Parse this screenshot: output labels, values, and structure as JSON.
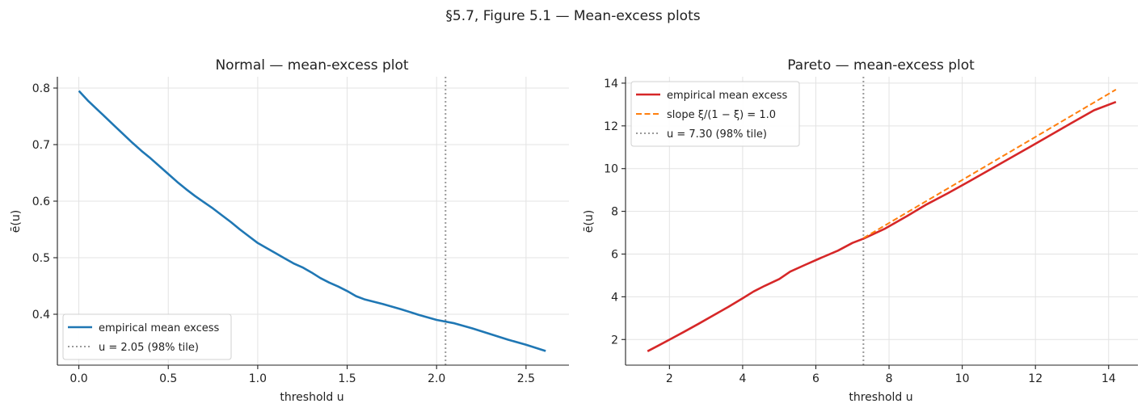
{
  "suptitle": "§5.7, Figure 5.1 — Mean-excess plots",
  "chart_data": [
    {
      "type": "line",
      "title": "Normal — mean-excess plot",
      "xlabel": "threshold u",
      "ylabel": "ē(u)",
      "xlim": [
        -0.12,
        2.74
      ],
      "ylim": [
        0.31,
        0.82
      ],
      "xticks": [
        0.0,
        0.5,
        1.0,
        1.5,
        2.0,
        2.5
      ],
      "xtick_labels": [
        "0.0",
        "0.5",
        "1.0",
        "1.5",
        "2.0",
        "2.5"
      ],
      "yticks": [
        0.4,
        0.5,
        0.6,
        0.7,
        0.8
      ],
      "ytick_labels": [
        "0.4",
        "0.5",
        "0.6",
        "0.7",
        "0.8"
      ],
      "grid": true,
      "legend_position": "lower-left",
      "series": [
        {
          "name": "empirical mean excess",
          "color": "#1f77b4",
          "style": "solid",
          "x": [
            0.0,
            0.05,
            0.1,
            0.15,
            0.2,
            0.25,
            0.3,
            0.35,
            0.4,
            0.45,
            0.5,
            0.55,
            0.6,
            0.65,
            0.7,
            0.75,
            0.8,
            0.85,
            0.9,
            0.95,
            1.0,
            1.05,
            1.1,
            1.15,
            1.2,
            1.25,
            1.3,
            1.35,
            1.4,
            1.45,
            1.5,
            1.55,
            1.6,
            1.7,
            1.8,
            1.9,
            2.0,
            2.1,
            2.2,
            2.3,
            2.4,
            2.5,
            2.61
          ],
          "y": [
            0.795,
            0.778,
            0.763,
            0.748,
            0.733,
            0.718,
            0.703,
            0.689,
            0.676,
            0.662,
            0.648,
            0.634,
            0.621,
            0.609,
            0.598,
            0.587,
            0.575,
            0.563,
            0.55,
            0.538,
            0.526,
            0.517,
            0.508,
            0.499,
            0.49,
            0.483,
            0.474,
            0.464,
            0.456,
            0.449,
            0.441,
            0.432,
            0.426,
            0.418,
            0.409,
            0.399,
            0.39,
            0.384,
            0.375,
            0.365,
            0.355,
            0.346,
            0.335
          ]
        },
        {
          "name": "u = 2.05 (98% tile)",
          "color": "#999999",
          "style": "dotted",
          "vline_x": 2.05
        }
      ]
    },
    {
      "type": "line",
      "title": "Pareto — mean-excess plot",
      "xlabel": "threshold u",
      "ylabel": "ē(u)",
      "xlim": [
        0.8,
        14.8
      ],
      "ylim": [
        0.8,
        14.3
      ],
      "xticks": [
        2,
        4,
        6,
        8,
        10,
        12,
        14
      ],
      "xtick_labels": [
        "2",
        "4",
        "6",
        "8",
        "10",
        "12",
        "14"
      ],
      "yticks": [
        2,
        4,
        6,
        8,
        10,
        12,
        14
      ],
      "ytick_labels": [
        "2",
        "4",
        "6",
        "8",
        "10",
        "12",
        "14"
      ],
      "grid": true,
      "legend_position": "upper-left",
      "series": [
        {
          "name": "empirical mean excess",
          "color": "#d62728",
          "style": "solid",
          "x": [
            1.4,
            1.7,
            2.0,
            2.4,
            2.8,
            3.2,
            3.6,
            4.0,
            4.3,
            4.6,
            5.0,
            5.3,
            5.7,
            6.1,
            6.6,
            7.0,
            7.3,
            7.9,
            8.5,
            9.0,
            9.6,
            10.2,
            10.9,
            11.6,
            12.3,
            13.0,
            13.6,
            14.2
          ],
          "y": [
            1.45,
            1.72,
            1.99,
            2.36,
            2.74,
            3.13,
            3.52,
            3.93,
            4.25,
            4.51,
            4.83,
            5.18,
            5.49,
            5.79,
            6.16,
            6.52,
            6.72,
            7.2,
            7.79,
            8.3,
            8.84,
            9.41,
            10.09,
            10.77,
            11.46,
            12.15,
            12.73,
            13.12
          ]
        },
        {
          "name": "slope ξ/(1 − ξ) = 1.0",
          "color": "#ff7f0e",
          "style": "dashed",
          "x": [
            7.3,
            14.2
          ],
          "y": [
            6.75,
            13.7
          ]
        },
        {
          "name": "u = 7.30 (98% tile)",
          "color": "#999999",
          "style": "dotted",
          "vline_x": 7.3
        }
      ]
    }
  ]
}
